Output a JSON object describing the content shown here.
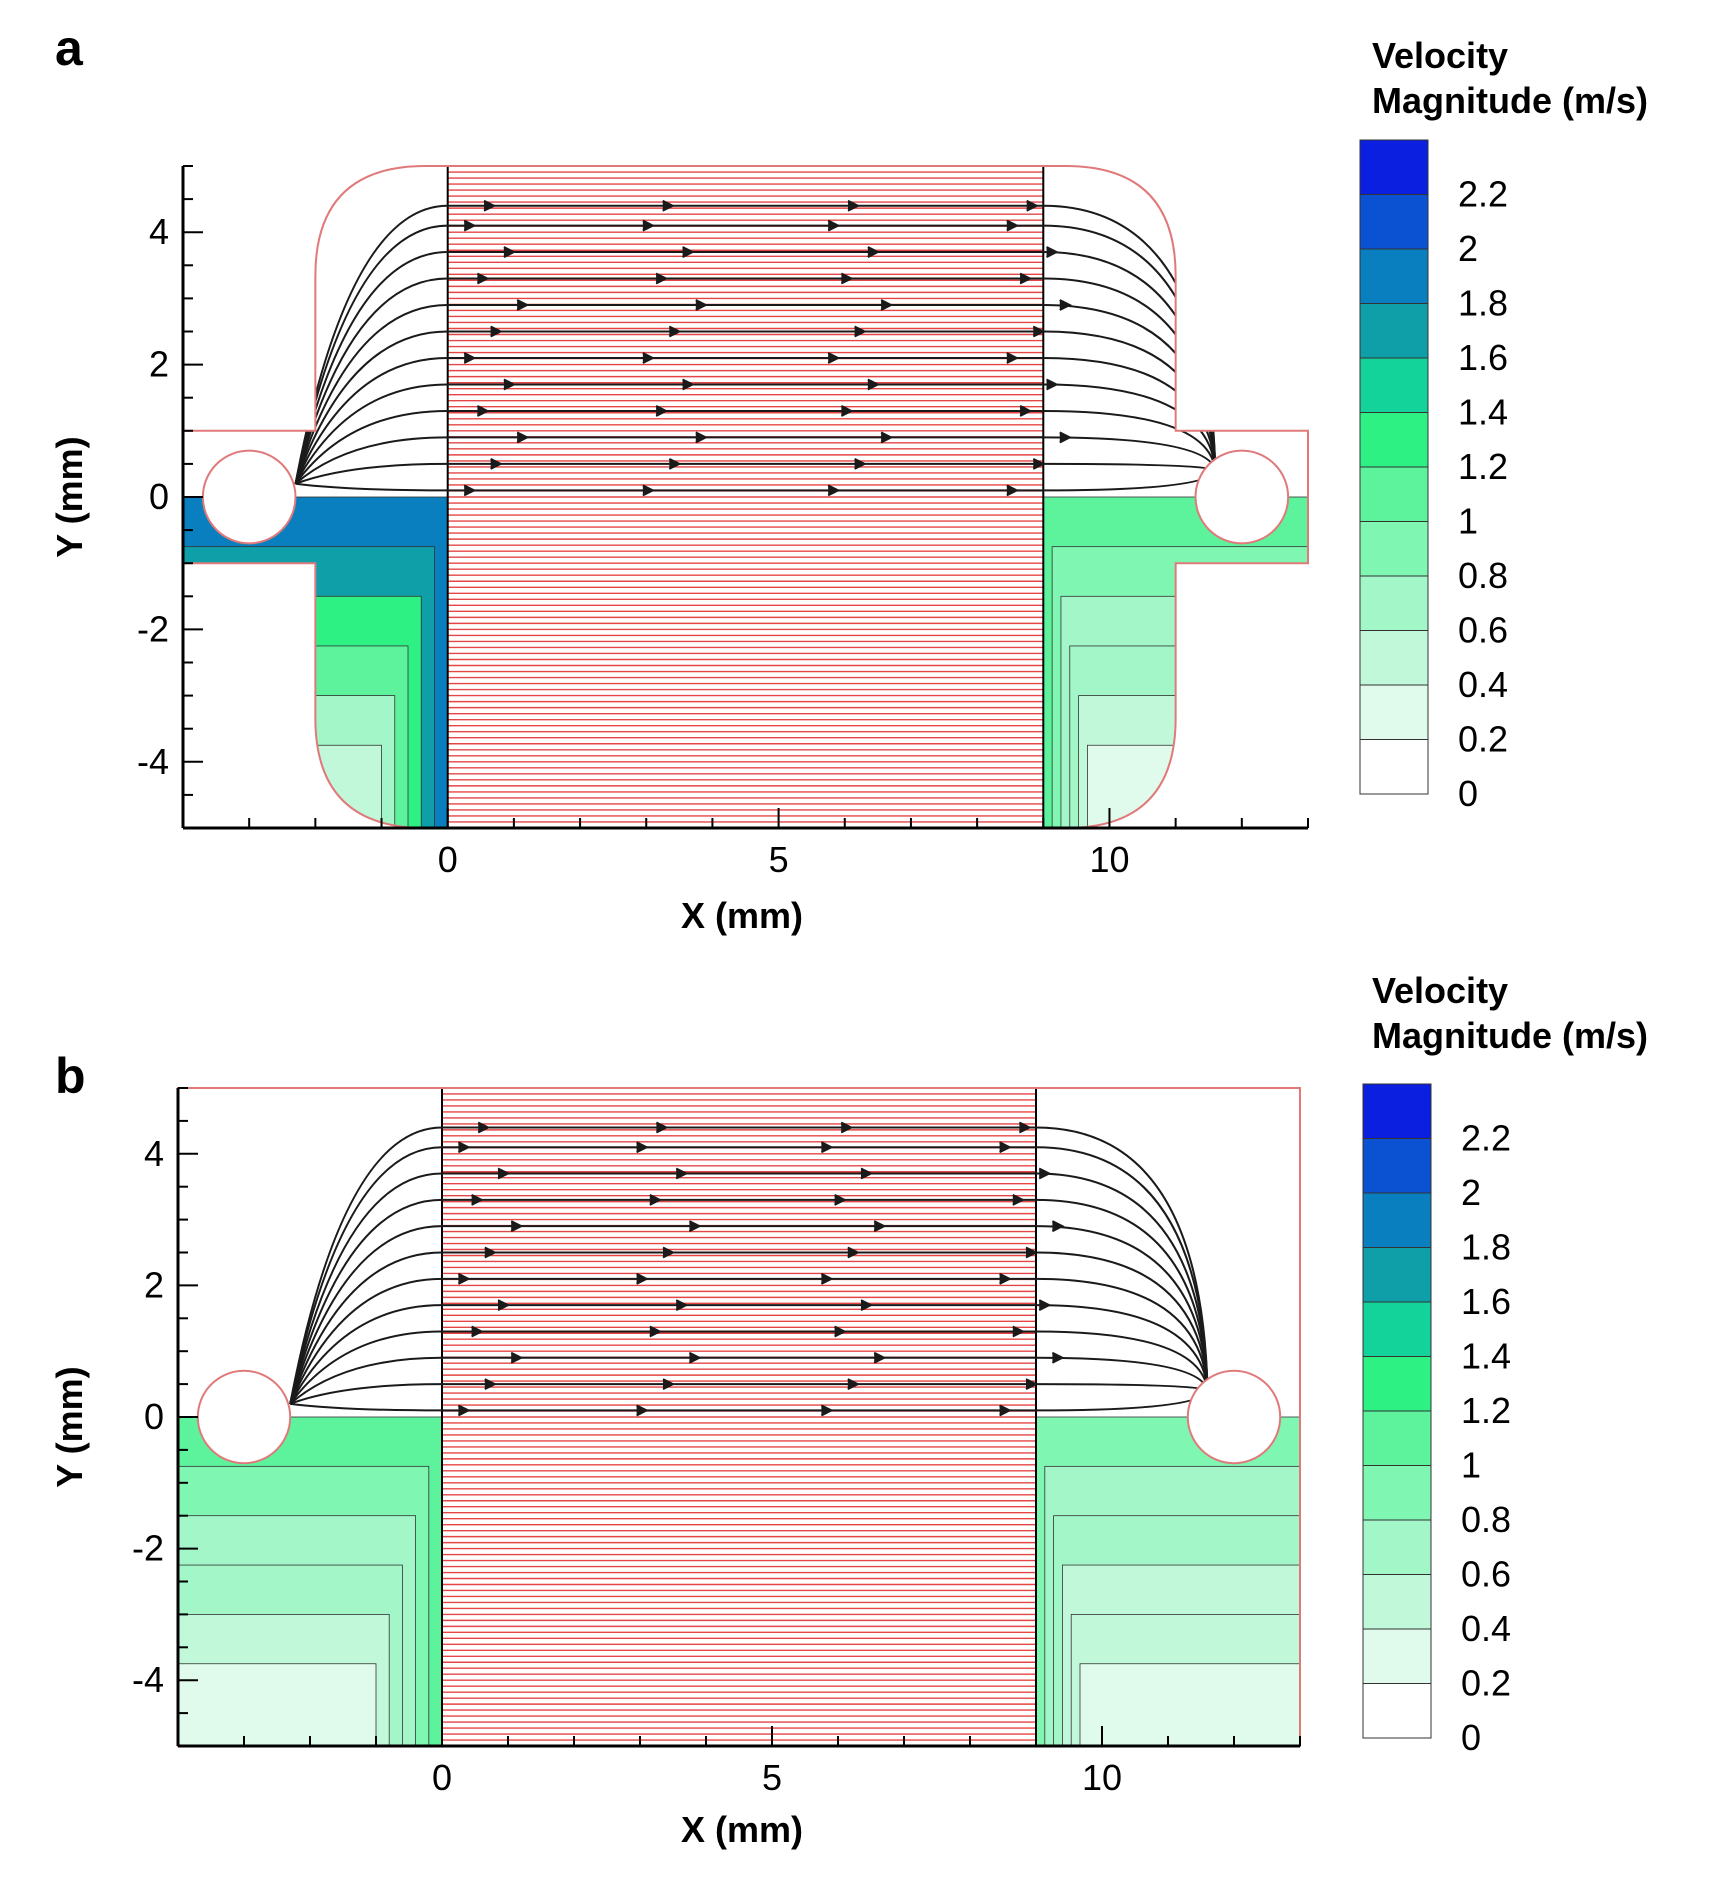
{
  "chart_data": [
    {
      "type": "heatmap",
      "panel": "a",
      "xlabel": "X (mm)",
      "ylabel": "Y (mm)",
      "xlim": [
        -4,
        13
      ],
      "ylim": [
        -5,
        5
      ],
      "x_ticks": [
        0,
        5,
        10
      ],
      "y_ticks": [
        -4,
        -2,
        0,
        2,
        4
      ],
      "colorbar": {
        "title_line1": "Velocity",
        "title_line2": "Magnitude (m/s)",
        "levels": [
          0,
          0.2,
          0.4,
          0.6,
          0.8,
          1,
          1.2,
          1.4,
          1.6,
          1.8,
          2,
          2.2
        ],
        "level_labels": [
          "0",
          "0.2",
          "0.4",
          "0.6",
          "0.8",
          "1",
          "1.2",
          "1.4",
          "1.6",
          "1.8",
          "2",
          "2.2"
        ]
      },
      "domain_shape": "rounded",
      "upper_half": "streamlines",
      "lower_half": "velocity contours",
      "regions": [
        {
          "name": "left-chamber",
          "x_range": [
            -4,
            0
          ],
          "dominant_velocity": 1.7
        },
        {
          "name": "channel",
          "x_range": [
            0,
            9
          ],
          "velocity": "grid lines"
        },
        {
          "name": "right-chamber",
          "x_range": [
            9,
            13
          ],
          "dominant_velocity": 0.8
        }
      ],
      "cylinders": [
        {
          "x": -3.0,
          "y": 0,
          "r": 0.7
        },
        {
          "x": 12.0,
          "y": 0,
          "r": 0.7
        }
      ]
    },
    {
      "type": "heatmap",
      "panel": "b",
      "xlabel": "X (mm)",
      "ylabel": "Y (mm)",
      "xlim": [
        -4,
        13
      ],
      "ylim": [
        -5,
        5
      ],
      "x_ticks": [
        0,
        5,
        10
      ],
      "y_ticks": [
        -4,
        -2,
        0,
        2,
        4
      ],
      "colorbar": {
        "title_line1": "Velocity",
        "title_line2": "Magnitude (m/s)",
        "levels": [
          0,
          0.2,
          0.4,
          0.6,
          0.8,
          1,
          1.2,
          1.4,
          1.6,
          1.8,
          2,
          2.2
        ],
        "level_labels": [
          "0",
          "0.2",
          "0.4",
          "0.6",
          "0.8",
          "1",
          "1.2",
          "1.4",
          "1.6",
          "1.8",
          "2",
          "2.2"
        ]
      },
      "domain_shape": "rectangular",
      "upper_half": "streamlines",
      "lower_half": "velocity contours",
      "regions": [
        {
          "name": "left-chamber",
          "x_range": [
            -4,
            0
          ],
          "dominant_velocity": 0.8
        },
        {
          "name": "channel",
          "x_range": [
            0,
            9
          ],
          "velocity": "grid lines"
        },
        {
          "name": "right-chamber",
          "x_range": [
            9,
            13
          ],
          "dominant_velocity": 0.6
        }
      ],
      "cylinders": [
        {
          "x": -3.0,
          "y": 0,
          "r": 0.7
        },
        {
          "x": 12.0,
          "y": 0,
          "r": 0.7
        }
      ]
    }
  ],
  "colors": {
    "level_colors": [
      "#ffffff",
      "#e0fbec",
      "#c2f8da",
      "#a2f6c7",
      "#80f6b3",
      "#5cf39c",
      "#2ef184",
      "#14d39a",
      "#0e9fa8",
      "#0a7fbf",
      "#0a52d2",
      "#0a1fe0"
    ],
    "grid_red": "#e64545",
    "outline_red": "#e07a7a",
    "streamline": "#1a1a1a"
  }
}
